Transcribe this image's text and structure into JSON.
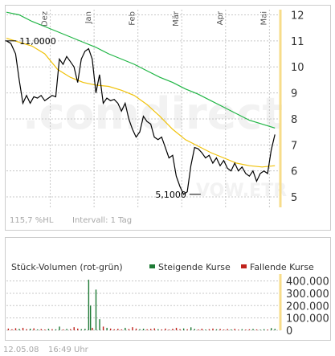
{
  "colors": {
    "price_line": "#000000",
    "ma_short": "#f0c20a",
    "ma_long": "#1fb544",
    "grid": "#c8c8c8",
    "axis_accent": "#f7dc8a",
    "watermark": "#f2f2f2",
    "rising_volume": "#1e7a35",
    "falling_volume": "#c0221c"
  },
  "watermark": {
    "brand": ".comdirect",
    "sub": "VOW.ETR"
  },
  "chart_data": [
    {
      "type": "line",
      "months": [
        "Dez",
        "Jan",
        "Feb",
        "Mär",
        "Apr",
        "Mai"
      ],
      "month_positions": [
        1.2,
        2.4,
        3.6,
        4.8,
        6.0,
        7.2
      ],
      "ylim": [
        4.6,
        12.2
      ],
      "xlim": [
        0,
        7.5
      ],
      "yticks": [
        "12",
        "11",
        "10",
        "9",
        "8",
        "7",
        "6",
        "5"
      ],
      "annotations": [
        {
          "text": "11,0000",
          "x": 0.05,
          "y": 11.0
        },
        {
          "text": "5,1000",
          "x": 5.1,
          "y": 5.1
        }
      ],
      "series": [
        {
          "kind": "price",
          "x": [
            0.0,
            0.12,
            0.25,
            0.35,
            0.45,
            0.55,
            0.65,
            0.75,
            0.85,
            0.95,
            1.05,
            1.15,
            1.25,
            1.35,
            1.45,
            1.55,
            1.65,
            1.75,
            1.85,
            1.95,
            2.05,
            2.15,
            2.25,
            2.35,
            2.45,
            2.55,
            2.65,
            2.75,
            2.85,
            2.95,
            3.05,
            3.15,
            3.25,
            3.35,
            3.45,
            3.55,
            3.65,
            3.75,
            3.85,
            3.95,
            4.05,
            4.15,
            4.25,
            4.35,
            4.45,
            4.55,
            4.65,
            4.75,
            4.85,
            4.95,
            5.05,
            5.15,
            5.25,
            5.35,
            5.45,
            5.55,
            5.65,
            5.75,
            5.85,
            5.95,
            6.05,
            6.15,
            6.25,
            6.35,
            6.45,
            6.55,
            6.65,
            6.75,
            6.85,
            6.95,
            7.05,
            7.15,
            7.25,
            7.35
          ],
          "y": [
            11.0,
            10.9,
            10.5,
            9.5,
            8.6,
            8.9,
            8.6,
            8.85,
            8.8,
            8.9,
            8.7,
            8.8,
            8.9,
            8.85,
            10.3,
            10.1,
            10.4,
            10.2,
            10.0,
            9.4,
            10.3,
            10.6,
            10.7,
            10.3,
            9.0,
            9.7,
            8.6,
            8.8,
            8.7,
            8.75,
            8.6,
            8.3,
            8.6,
            8.0,
            7.6,
            7.3,
            7.5,
            8.1,
            7.9,
            7.8,
            7.3,
            7.2,
            7.3,
            6.9,
            6.5,
            6.6,
            5.8,
            5.4,
            5.1,
            5.2,
            6.2,
            6.9,
            6.85,
            6.7,
            6.5,
            6.6,
            6.3,
            6.5,
            6.2,
            6.4,
            6.1,
            6.0,
            6.3,
            6.0,
            6.15,
            5.9,
            5.8,
            6.0,
            5.6,
            5.9,
            6.0,
            5.9,
            6.8,
            7.4
          ]
        },
        {
          "kind": "moving_average_short",
          "x": [
            0.0,
            0.35,
            0.7,
            1.05,
            1.4,
            1.75,
            2.1,
            2.45,
            2.8,
            3.15,
            3.5,
            3.85,
            4.2,
            4.55,
            4.9,
            5.25,
            5.6,
            5.95,
            6.3,
            6.65,
            7.0,
            7.35
          ],
          "y": [
            11.1,
            10.95,
            10.8,
            10.5,
            9.9,
            9.6,
            9.4,
            9.3,
            9.25,
            9.1,
            8.9,
            8.55,
            8.1,
            7.6,
            7.2,
            6.95,
            6.7,
            6.5,
            6.3,
            6.2,
            6.15,
            6.2
          ]
        },
        {
          "kind": "moving_average_long",
          "x": [
            0.0,
            0.35,
            0.7,
            1.05,
            1.4,
            1.75,
            2.1,
            2.45,
            2.8,
            3.15,
            3.5,
            3.85,
            4.2,
            4.55,
            4.9,
            5.25,
            5.6,
            5.95,
            6.3,
            6.65,
            7.0,
            7.35
          ],
          "y": [
            12.1,
            12.0,
            11.75,
            11.55,
            11.35,
            11.15,
            10.95,
            10.75,
            10.5,
            10.3,
            10.1,
            9.85,
            9.6,
            9.4,
            9.15,
            8.95,
            8.7,
            8.45,
            8.2,
            7.95,
            7.8,
            7.65
          ]
        }
      ],
      "footer": {
        "range": "115,7 %HL",
        "interval": "Intervall: 1 Tag"
      }
    },
    {
      "type": "bar",
      "title": "Stück-Volumen (rot-grün)",
      "legend": [
        {
          "label": "Steigende Kurse",
          "color": "#1e7a35"
        },
        {
          "label": "Fallende Kurse",
          "color": "#c0221c"
        }
      ],
      "ylim": [
        0,
        430000
      ],
      "yticks": [
        "400.000",
        "300.000",
        "200.000",
        "100.000",
        "0"
      ],
      "ytick_values": [
        400000,
        300000,
        200000,
        100000,
        0
      ],
      "bars": [
        {
          "x": 0.05,
          "v": 14000,
          "d": "down"
        },
        {
          "x": 0.15,
          "v": 8000,
          "d": "down"
        },
        {
          "x": 0.25,
          "v": 17000,
          "d": "down"
        },
        {
          "x": 0.35,
          "v": 11000,
          "d": "up"
        },
        {
          "x": 0.45,
          "v": 20000,
          "d": "down"
        },
        {
          "x": 0.55,
          "v": 9000,
          "d": "down"
        },
        {
          "x": 0.65,
          "v": 13000,
          "d": "up"
        },
        {
          "x": 0.75,
          "v": 16000,
          "d": "down"
        },
        {
          "x": 0.85,
          "v": 7000,
          "d": "up"
        },
        {
          "x": 0.95,
          "v": 10000,
          "d": "down"
        },
        {
          "x": 1.05,
          "v": 6000,
          "d": "down"
        },
        {
          "x": 1.15,
          "v": 12000,
          "d": "up"
        },
        {
          "x": 1.25,
          "v": 9000,
          "d": "down"
        },
        {
          "x": 1.35,
          "v": 8000,
          "d": "up"
        },
        {
          "x": 1.45,
          "v": 30000,
          "d": "up"
        },
        {
          "x": 1.55,
          "v": 7000,
          "d": "down"
        },
        {
          "x": 1.65,
          "v": 11000,
          "d": "up"
        },
        {
          "x": 1.75,
          "v": 9000,
          "d": "down"
        },
        {
          "x": 1.85,
          "v": 25000,
          "d": "down"
        },
        {
          "x": 1.95,
          "v": 14000,
          "d": "down"
        },
        {
          "x": 2.05,
          "v": 9000,
          "d": "up"
        },
        {
          "x": 2.15,
          "v": 12000,
          "d": "up"
        },
        {
          "x": 2.25,
          "v": 410000,
          "d": "up"
        },
        {
          "x": 2.3,
          "v": 200000,
          "d": "up"
        },
        {
          "x": 2.35,
          "v": 20000,
          "d": "down"
        },
        {
          "x": 2.45,
          "v": 330000,
          "d": "up"
        },
        {
          "x": 2.55,
          "v": 90000,
          "d": "up"
        },
        {
          "x": 2.65,
          "v": 30000,
          "d": "down"
        },
        {
          "x": 2.75,
          "v": 20000,
          "d": "up"
        },
        {
          "x": 2.85,
          "v": 14000,
          "d": "down"
        },
        {
          "x": 2.95,
          "v": 8000,
          "d": "down"
        },
        {
          "x": 3.05,
          "v": 12000,
          "d": "down"
        },
        {
          "x": 3.15,
          "v": 7000,
          "d": "down"
        },
        {
          "x": 3.25,
          "v": 20000,
          "d": "up"
        },
        {
          "x": 3.35,
          "v": 10000,
          "d": "down"
        },
        {
          "x": 3.45,
          "v": 25000,
          "d": "down"
        },
        {
          "x": 3.55,
          "v": 14000,
          "d": "down"
        },
        {
          "x": 3.65,
          "v": 9000,
          "d": "up"
        },
        {
          "x": 3.75,
          "v": 13000,
          "d": "up"
        },
        {
          "x": 3.85,
          "v": 8000,
          "d": "down"
        },
        {
          "x": 3.95,
          "v": 11000,
          "d": "down"
        },
        {
          "x": 4.05,
          "v": 16000,
          "d": "down"
        },
        {
          "x": 4.15,
          "v": 9000,
          "d": "up"
        },
        {
          "x": 4.25,
          "v": 7000,
          "d": "down"
        },
        {
          "x": 4.35,
          "v": 14000,
          "d": "down"
        },
        {
          "x": 4.45,
          "v": 6000,
          "d": "down"
        },
        {
          "x": 4.55,
          "v": 12000,
          "d": "down"
        },
        {
          "x": 4.65,
          "v": 20000,
          "d": "down"
        },
        {
          "x": 4.75,
          "v": 9000,
          "d": "down"
        },
        {
          "x": 4.85,
          "v": 15000,
          "d": "up"
        },
        {
          "x": 4.95,
          "v": 8000,
          "d": "down"
        },
        {
          "x": 5.05,
          "v": 24000,
          "d": "up"
        },
        {
          "x": 5.15,
          "v": 11000,
          "d": "up"
        },
        {
          "x": 5.25,
          "v": 7000,
          "d": "down"
        },
        {
          "x": 5.35,
          "v": 13000,
          "d": "down"
        },
        {
          "x": 5.45,
          "v": 6000,
          "d": "up"
        },
        {
          "x": 5.55,
          "v": 9000,
          "d": "down"
        },
        {
          "x": 5.65,
          "v": 14000,
          "d": "down"
        },
        {
          "x": 5.75,
          "v": 8000,
          "d": "up"
        },
        {
          "x": 5.85,
          "v": 11000,
          "d": "down"
        },
        {
          "x": 5.95,
          "v": 6000,
          "d": "down"
        },
        {
          "x": 6.05,
          "v": 10000,
          "d": "down"
        },
        {
          "x": 6.15,
          "v": 7000,
          "d": "up"
        },
        {
          "x": 6.25,
          "v": 12000,
          "d": "down"
        },
        {
          "x": 6.35,
          "v": 5000,
          "d": "down"
        },
        {
          "x": 6.45,
          "v": 9000,
          "d": "up"
        },
        {
          "x": 6.55,
          "v": 6000,
          "d": "down"
        },
        {
          "x": 6.65,
          "v": 8000,
          "d": "down"
        },
        {
          "x": 6.75,
          "v": 11000,
          "d": "up"
        },
        {
          "x": 6.85,
          "v": 7000,
          "d": "down"
        },
        {
          "x": 6.95,
          "v": 5000,
          "d": "up"
        },
        {
          "x": 7.05,
          "v": 9000,
          "d": "up"
        },
        {
          "x": 7.15,
          "v": 6000,
          "d": "down"
        },
        {
          "x": 7.25,
          "v": 18000,
          "d": "up"
        },
        {
          "x": 7.35,
          "v": 12000,
          "d": "up"
        }
      ]
    }
  ],
  "timestamp": {
    "date": "12.05.08",
    "time": "16:49 Uhr"
  }
}
